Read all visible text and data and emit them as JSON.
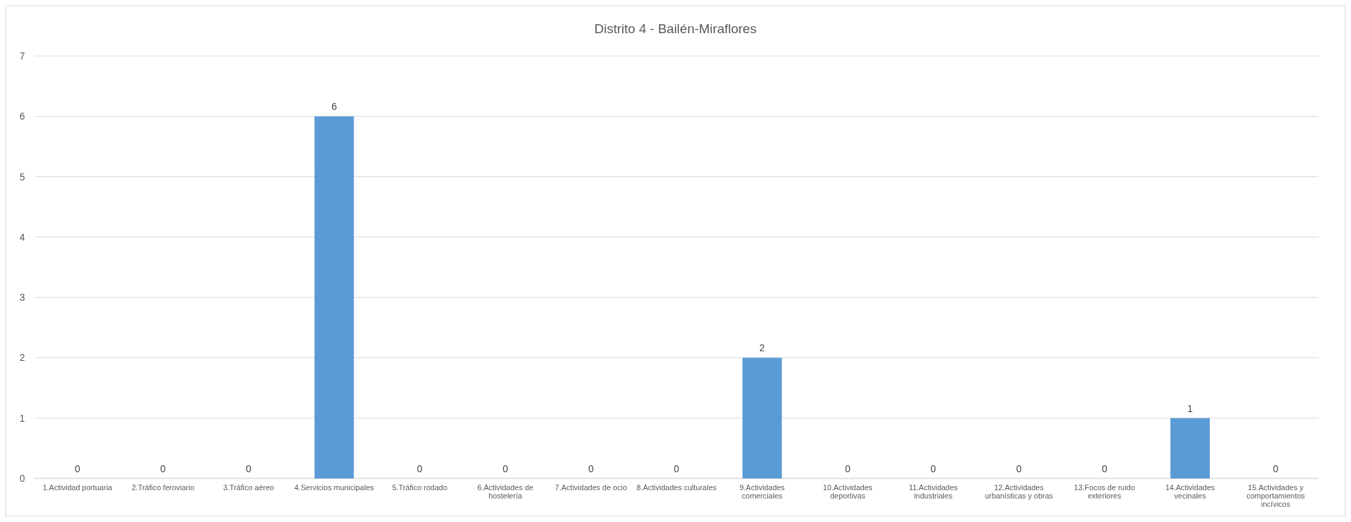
{
  "chart_data": {
    "type": "bar",
    "title": "Distrito 4 - Bailén-Miraflores",
    "categories": [
      "1.Actividad portuaria",
      "2.Tráfico feroviario",
      "3.Tráfico aéreo",
      "4.Servicios municipales",
      "5.Tráfico rodado",
      "6.Actividades de hostelería",
      "7.Actividades de ocio",
      "8.Actividades culturales",
      "9.Actividades comerciales",
      "10.Actividades deportivas",
      "11.Actividades industriales",
      "12.Actividades urbanísticas y obras",
      "13.Focos de ruido exteriores",
      "14.Actividades vecinales",
      "15.Actividades y comportamientos incívicos"
    ],
    "values": [
      0,
      0,
      0,
      6,
      0,
      0,
      0,
      0,
      2,
      0,
      0,
      0,
      0,
      1,
      0
    ],
    "color": "#5b9bd5",
    "ylim": [
      0,
      7
    ],
    "yticks": [
      0,
      1,
      2,
      3,
      4,
      5,
      6,
      7
    ],
    "grid": "y",
    "data_labels": true
  }
}
